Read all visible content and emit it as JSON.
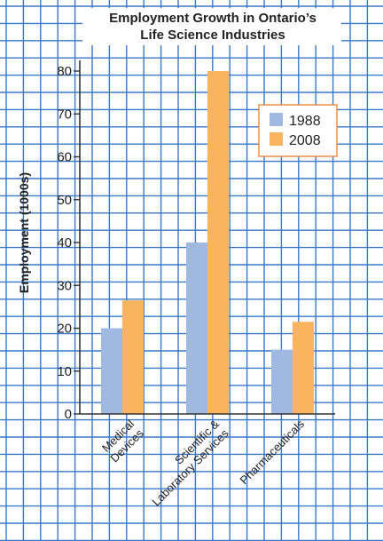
{
  "chart_data": {
    "type": "bar",
    "title_lines": [
      "Employment Growth in Ontario’s",
      "Life Science Industries"
    ],
    "ylabel": "Employment (1000s)",
    "xlabel": "",
    "ylim": [
      0,
      80
    ],
    "yticks": [
      0,
      10,
      20,
      30,
      40,
      50,
      60,
      70,
      80
    ],
    "categories": [
      [
        "Medical",
        "Devices"
      ],
      [
        "Scientific &",
        "Laboratory Services"
      ],
      [
        "Pharmaceuticals"
      ]
    ],
    "series": [
      {
        "name": "1988",
        "color": "#a0b9e0",
        "values": [
          20,
          40,
          15
        ]
      },
      {
        "name": "2008",
        "color": "#fbb45e",
        "values": [
          26.5,
          80,
          21.5
        ]
      }
    ],
    "legend_position": "top-right",
    "grid": true,
    "grid_color": "#3a78c8",
    "legend_border_color": "#e88a3c"
  }
}
